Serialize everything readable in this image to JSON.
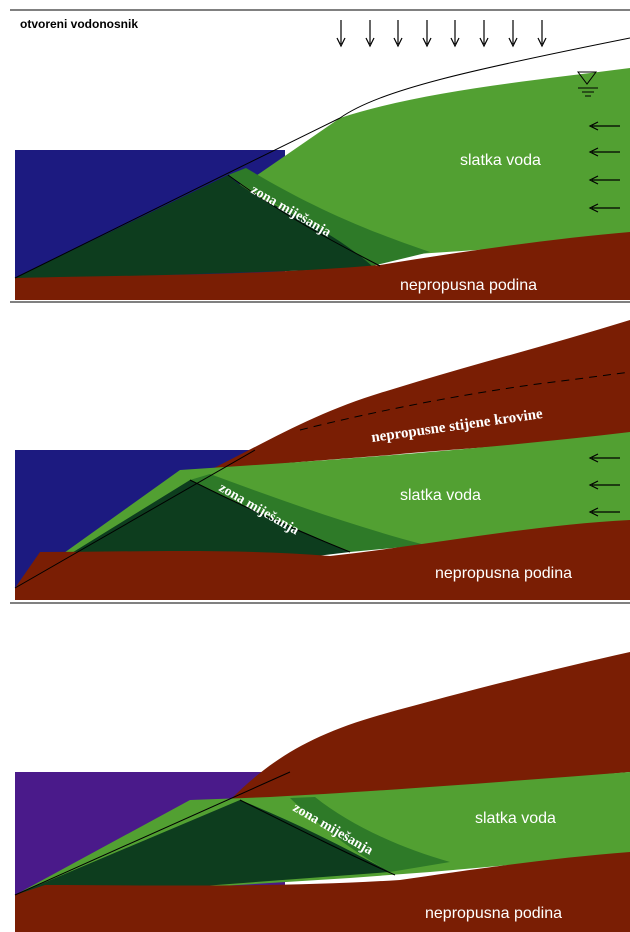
{
  "panels": [
    {
      "title": "otvoreni vodonosnik",
      "fresh_label": "slatka voda",
      "mix_label": "zona miješanja",
      "base_label": "nepropusna podina"
    },
    {
      "fresh_label": "slatka voda",
      "mix_label": "zona miješanja",
      "base_label": "nepropusna podina",
      "cap_label": "nepropusne stijene krovine"
    },
    {
      "fresh_label": "slatka voda",
      "mix_label": "zona miješanja",
      "base_label": "nepropusna podina"
    }
  ],
  "colors": {
    "sea": "#1c1a80",
    "sea_panel3": "#4a1a8a",
    "fresh_water": "#52a032",
    "mixing_zone": "#2e7a28",
    "salt_wedge": "#0d3d1e",
    "bedrock": "#7a1e04"
  },
  "icons": [
    "recharge-arrow-icon",
    "inflow-arrow-icon",
    "water-table-icon"
  ]
}
